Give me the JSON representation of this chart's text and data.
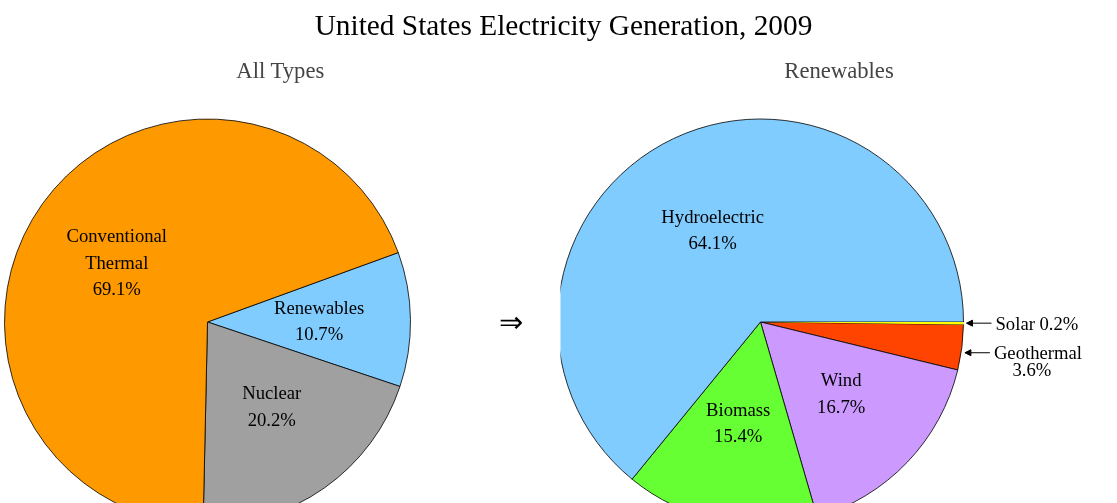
{
  "chart_data": [
    {
      "type": "pie",
      "title": "All Types",
      "categories": [
        "Renewables",
        "Nuclear",
        "Conventional Thermal"
      ],
      "values": [
        10.7,
        20.2,
        69.1
      ],
      "value_labels": [
        "10.7%",
        "20.2%",
        "69.1%"
      ],
      "colors": [
        "#80ccff",
        "#a0a0a0",
        "#ff9900"
      ],
      "legend": false,
      "annotations": [
        "United States Electricity Generation, 2009",
        "⇒"
      ]
    },
    {
      "type": "pie",
      "title": "Renewables",
      "categories": [
        "Solar",
        "Geothermal",
        "Wind",
        "Biomass",
        "Hydroelectric"
      ],
      "values": [
        0.2,
        3.6,
        16.7,
        15.4,
        64.1
      ],
      "value_labels": [
        "0.2%",
        "3.6%",
        "16.7%",
        "15.4%",
        "64.1%"
      ],
      "colors": [
        "#ffff00",
        "#ff4400",
        "#cc99ff",
        "#66ff33",
        "#80ccff"
      ],
      "legend": false
    }
  ]
}
